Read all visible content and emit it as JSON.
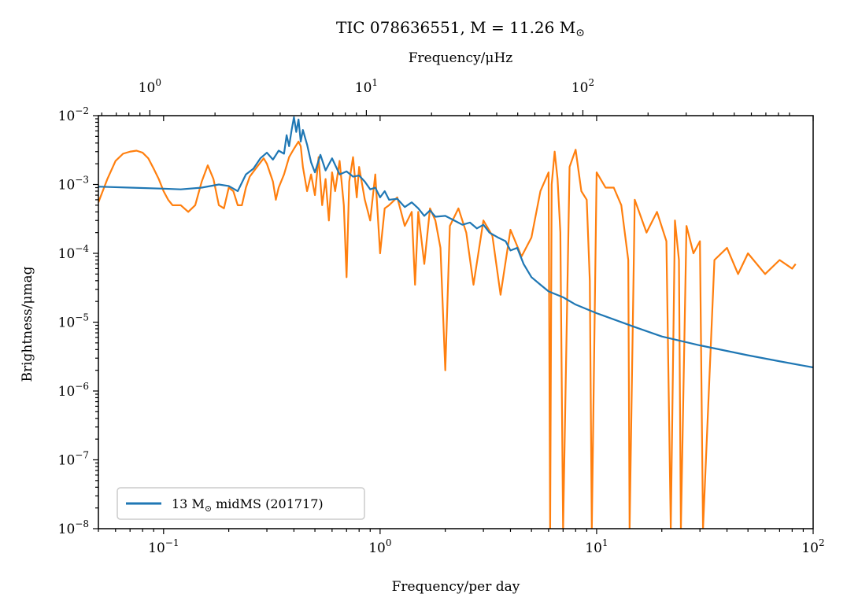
{
  "chart_data": {
    "type": "line",
    "title": "TIC 078636551, M = 11.26 M⊙",
    "xlabel": "Frequency/per day",
    "ylabel": "Brightness/μmag",
    "top_xlabel": "Frequency/μHz",
    "xscale": "log",
    "yscale": "log",
    "xlim": [
      0.05,
      100
    ],
    "ylim": [
      1e-08,
      0.01
    ],
    "top_xlim_uHz": [
      0.5787,
      1157.4
    ],
    "x_ticks": [
      {
        "value": 0.1,
        "label": "10",
        "exp": "−1"
      },
      {
        "value": 1,
        "label": "10",
        "exp": "0"
      },
      {
        "value": 10,
        "label": "10",
        "exp": "1"
      },
      {
        "value": 100,
        "label": "10",
        "exp": "2"
      }
    ],
    "top_x_ticks": [
      {
        "value": 1,
        "label": "10",
        "exp": "0"
      },
      {
        "value": 10,
        "label": "10",
        "exp": "1"
      },
      {
        "value": 100,
        "label": "10",
        "exp": "2"
      }
    ],
    "y_ticks": [
      {
        "value": 1e-08,
        "label": "10",
        "exp": "−8"
      },
      {
        "value": 1e-07,
        "label": "10",
        "exp": "−7"
      },
      {
        "value": 1e-06,
        "label": "10",
        "exp": "−6"
      },
      {
        "value": 1e-05,
        "label": "10",
        "exp": "−5"
      },
      {
        "value": 0.0001,
        "label": "10",
        "exp": "−4"
      },
      {
        "value": 0.001,
        "label": "10",
        "exp": "−3"
      },
      {
        "value": 0.01,
        "label": "10",
        "exp": "−2"
      }
    ],
    "legend": {
      "placement": "lower-left",
      "label": "13 M⊙ midMS (201717)"
    },
    "grid": false,
    "series": [
      {
        "name": "13 M⊙ midMS (201717)",
        "color": "#1f77b4",
        "x": [
          0.05,
          0.07,
          0.1,
          0.12,
          0.15,
          0.18,
          0.2,
          0.22,
          0.24,
          0.26,
          0.28,
          0.3,
          0.32,
          0.34,
          0.36,
          0.37,
          0.38,
          0.39,
          0.4,
          0.41,
          0.42,
          0.43,
          0.44,
          0.46,
          0.48,
          0.5,
          0.53,
          0.56,
          0.6,
          0.65,
          0.7,
          0.75,
          0.8,
          0.85,
          0.9,
          0.95,
          1.0,
          1.05,
          1.1,
          1.2,
          1.3,
          1.4,
          1.5,
          1.6,
          1.7,
          1.8,
          2.0,
          2.2,
          2.4,
          2.6,
          2.8,
          3.0,
          3.2,
          3.5,
          3.8,
          4.0,
          4.3,
          4.6,
          5.0,
          5.5,
          6.0,
          7.0,
          8.0,
          10,
          15,
          20,
          30,
          50,
          70,
          100
        ],
        "y": [
          0.00093,
          0.0009,
          0.00087,
          0.00085,
          0.0009,
          0.001,
          0.00095,
          0.0008,
          0.0014,
          0.0017,
          0.0024,
          0.0029,
          0.0023,
          0.0031,
          0.0028,
          0.0052,
          0.0036,
          0.0061,
          0.0095,
          0.0058,
          0.0088,
          0.0042,
          0.0062,
          0.0038,
          0.0021,
          0.0015,
          0.0027,
          0.0016,
          0.0024,
          0.0014,
          0.00155,
          0.0013,
          0.00135,
          0.0011,
          0.00085,
          0.0009,
          0.00065,
          0.0008,
          0.0006,
          0.00062,
          0.00047,
          0.00055,
          0.00045,
          0.00035,
          0.00042,
          0.00034,
          0.00035,
          0.0003,
          0.00026,
          0.00028,
          0.00023,
          0.00026,
          0.0002,
          0.00017,
          0.00015,
          0.00011,
          0.00012,
          7e-05,
          4.5e-05,
          3.5e-05,
          2.8e-05,
          2.3e-05,
          1.8e-05,
          1.35e-05,
          8.5e-06,
          6.2e-06,
          4.6e-06,
          3.3e-06,
          2.7e-06,
          2.2e-06
        ]
      },
      {
        "name": "",
        "color": "#ff7f0e",
        "x": [
          0.05,
          0.055,
          0.06,
          0.065,
          0.07,
          0.075,
          0.08,
          0.085,
          0.09,
          0.095,
          0.1,
          0.105,
          0.11,
          0.12,
          0.13,
          0.14,
          0.15,
          0.16,
          0.17,
          0.18,
          0.19,
          0.2,
          0.21,
          0.22,
          0.23,
          0.24,
          0.25,
          0.27,
          0.29,
          0.3,
          0.32,
          0.33,
          0.34,
          0.36,
          0.38,
          0.4,
          0.42,
          0.43,
          0.44,
          0.46,
          0.48,
          0.5,
          0.52,
          0.54,
          0.56,
          0.58,
          0.6,
          0.62,
          0.65,
          0.68,
          0.7,
          0.72,
          0.75,
          0.78,
          0.8,
          0.85,
          0.9,
          0.95,
          1.0,
          1.05,
          1.1,
          1.2,
          1.3,
          1.4,
          1.45,
          1.5,
          1.6,
          1.7,
          1.8,
          1.9,
          2.0,
          2.1,
          2.3,
          2.5,
          2.7,
          3.0,
          3.3,
          3.6,
          4.0,
          4.5,
          5.0,
          5.5,
          6.0,
          6.1,
          6.2,
          6.4,
          6.6,
          6.8,
          7.0,
          7.5,
          8.0,
          8.5,
          9.0,
          9.3,
          9.5,
          10,
          11,
          12,
          13,
          14,
          14.2,
          15,
          17,
          19,
          21,
          22,
          23,
          24,
          24.5,
          26,
          28,
          30,
          31,
          35,
          40,
          45,
          50,
          60,
          70,
          80,
          83
        ],
        "y": [
          0.00055,
          0.0012,
          0.0022,
          0.0028,
          0.003,
          0.0031,
          0.0029,
          0.0024,
          0.0017,
          0.0012,
          0.0008,
          0.0006,
          0.0005,
          0.0005,
          0.0004,
          0.0005,
          0.0011,
          0.0019,
          0.0012,
          0.0005,
          0.00045,
          0.0009,
          0.0008,
          0.0005,
          0.0005,
          0.0009,
          0.0013,
          0.0018,
          0.0024,
          0.002,
          0.0011,
          0.0006,
          0.0009,
          0.0014,
          0.0025,
          0.0033,
          0.0042,
          0.0036,
          0.0018,
          0.0008,
          0.0014,
          0.0007,
          0.0025,
          0.0005,
          0.0012,
          0.0003,
          0.0015,
          0.0008,
          0.0022,
          0.0005,
          4.5e-05,
          0.0011,
          0.0025,
          0.00065,
          0.0018,
          0.0006,
          0.0003,
          0.0014,
          0.0001,
          0.00045,
          0.0005,
          0.00065,
          0.00025,
          0.0004,
          3.5e-05,
          0.0004,
          7e-05,
          0.00045,
          0.0003,
          0.00012,
          2e-06,
          0.00025,
          0.00045,
          0.0002,
          3.5e-05,
          0.0003,
          0.00018,
          2.5e-05,
          0.00022,
          9e-05,
          0.00017,
          0.0008,
          0.0015,
          1e-08,
          0.001,
          0.003,
          0.0012,
          0.0002,
          1e-08,
          0.0018,
          0.0032,
          0.0008,
          0.0006,
          4e-05,
          1e-08,
          0.0015,
          0.0009,
          0.0009,
          0.0005,
          8e-05,
          1e-08,
          0.0006,
          0.0002,
          0.0004,
          0.00015,
          1e-08,
          0.0003,
          8e-05,
          1e-08,
          0.00025,
          0.0001,
          0.00015,
          1e-08,
          8e-05,
          0.00012,
          5e-05,
          0.0001,
          5e-05,
          8e-05,
          6e-05,
          7e-05
        ]
      }
    ]
  }
}
